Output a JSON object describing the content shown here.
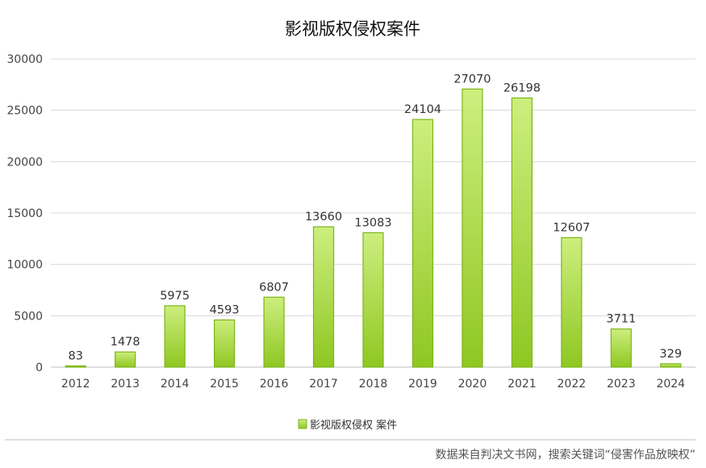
{
  "chart_data": {
    "type": "bar",
    "title": "影视版权侵权案件",
    "xlabel": "",
    "ylabel": "",
    "categories": [
      "2012",
      "2013",
      "2014",
      "2015",
      "2016",
      "2017",
      "2018",
      "2019",
      "2020",
      "2021",
      "2022",
      "2023",
      "2024"
    ],
    "series": [
      {
        "name": "影视版权侵权 案件",
        "values": [
          83,
          1478,
          5975,
          4593,
          6807,
          13660,
          13083,
          24104,
          27070,
          26198,
          12607,
          3711,
          329
        ]
      }
    ],
    "ylim": [
      0,
      30000
    ],
    "yticks": [
      "0",
      "5000",
      "10000",
      "15000",
      "20000",
      "25000",
      "30000"
    ],
    "grid": true,
    "legend_position": "bottom-center",
    "bar_color": "#9fd12e",
    "source_note": "数据来自判决文书网，搜索关键词“侵害作品放映权”"
  }
}
